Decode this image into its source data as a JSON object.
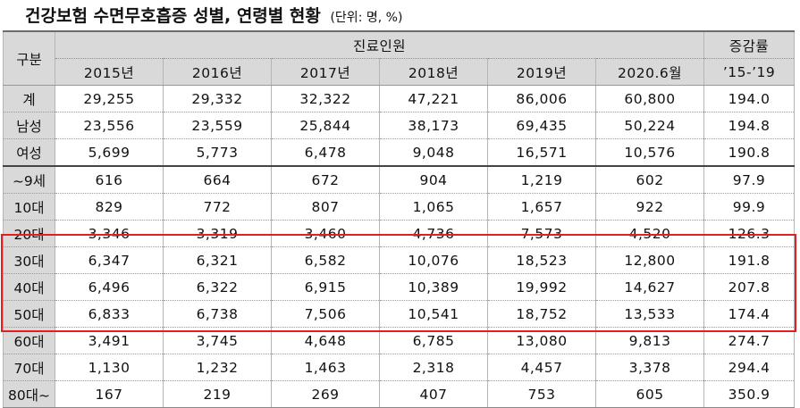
{
  "title": "건강보험 수면무호흡증 성별, 연령별 현황",
  "unit": "(단위: 명, %)",
  "table": {
    "gubun": "구분",
    "group_header": "진료인원",
    "rate_header": "증감률",
    "rate_period": "’15-’19",
    "years": [
      "2015년",
      "2016년",
      "2017년",
      "2018년",
      "2019년",
      "2020.6월"
    ],
    "rows": [
      {
        "label": "계",
        "values": [
          "29,255",
          "29,332",
          "32,322",
          "47,221",
          "86,006",
          "60,800"
        ],
        "rate": "194.0"
      },
      {
        "label": "남성",
        "values": [
          "23,556",
          "23,559",
          "25,844",
          "38,173",
          "69,435",
          "50,224"
        ],
        "rate": "194.8"
      },
      {
        "label": "여성",
        "values": [
          "5,699",
          "5,773",
          "6,478",
          "9,048",
          "16,571",
          "10,576"
        ],
        "rate": "190.8"
      },
      {
        "label": "~9세",
        "values": [
          "616",
          "664",
          "672",
          "904",
          "1,219",
          "602"
        ],
        "rate": "97.9"
      },
      {
        "label": "10대",
        "values": [
          "829",
          "772",
          "807",
          "1,065",
          "1,657",
          "922"
        ],
        "rate": "99.9"
      },
      {
        "label": "20대",
        "values": [
          "3,346",
          "3,319",
          "3,460",
          "4,736",
          "7,573",
          "4,520"
        ],
        "rate": "126.3"
      },
      {
        "label": "30대",
        "values": [
          "6,347",
          "6,321",
          "6,582",
          "10,076",
          "18,523",
          "12,800"
        ],
        "rate": "191.8"
      },
      {
        "label": "40대",
        "values": [
          "6,496",
          "6,322",
          "6,915",
          "10,389",
          "19,992",
          "14,627"
        ],
        "rate": "207.8"
      },
      {
        "label": "50대",
        "values": [
          "6,833",
          "6,738",
          "7,506",
          "10,541",
          "18,752",
          "13,533"
        ],
        "rate": "174.4"
      },
      {
        "label": "60대",
        "values": [
          "3,491",
          "3,745",
          "4,648",
          "6,785",
          "13,080",
          "9,813"
        ],
        "rate": "274.7"
      },
      {
        "label": "70대",
        "values": [
          "1,130",
          "1,232",
          "1,463",
          "2,318",
          "4,457",
          "3,378"
        ],
        "rate": "294.4"
      },
      {
        "label": "80대~",
        "values": [
          "167",
          "219",
          "269",
          "407",
          "753",
          "605"
        ],
        "rate": "350.9"
      }
    ]
  },
  "colors": {
    "header_bg": "#d9d9d9",
    "highlight": "#e02020"
  }
}
